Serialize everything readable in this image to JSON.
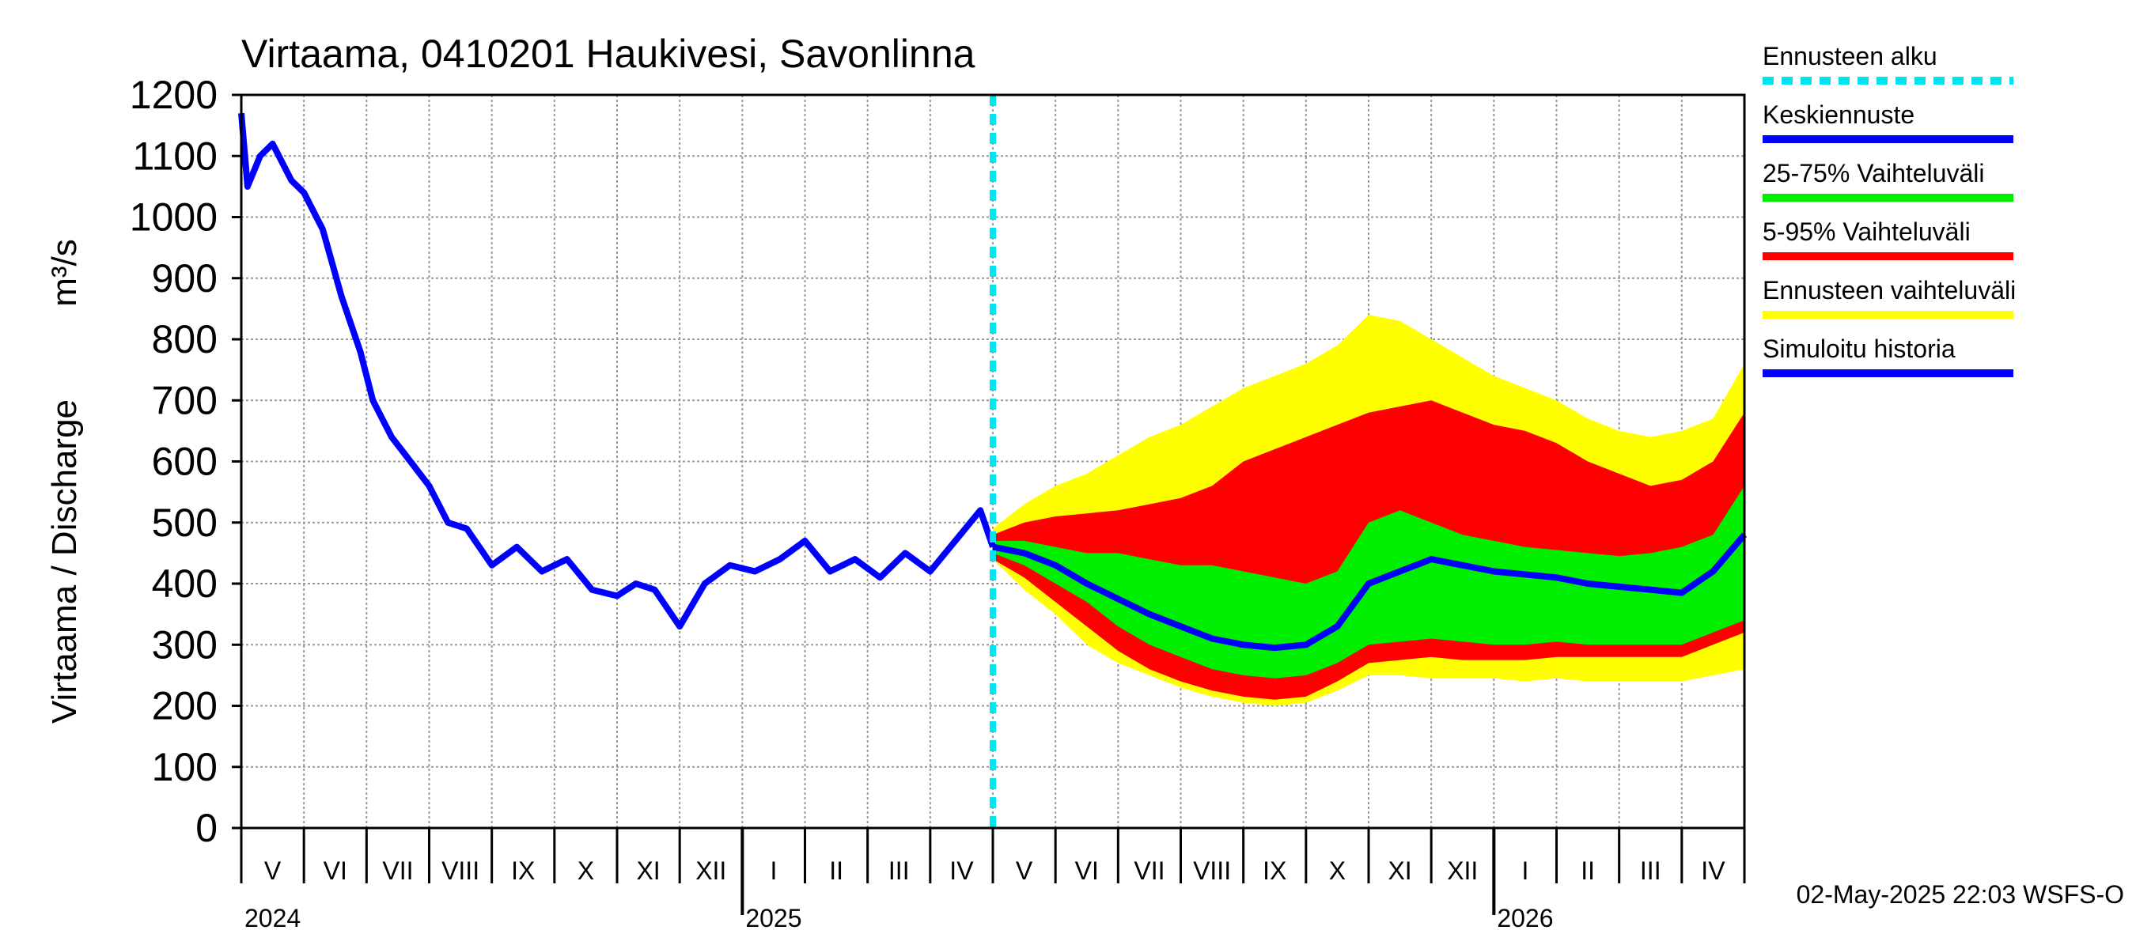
{
  "chart_data": {
    "type": "area",
    "title": "Virtaama, 0410201 Haukivesi, Savonlinna",
    "ylabel": "Virtaama / Discharge",
    "yunit": "m³/s",
    "ylim": [
      0,
      1200
    ],
    "yticks": [
      "0",
      "100",
      "200",
      "300",
      "400",
      "500",
      "600",
      "700",
      "800",
      "900",
      "1000",
      "1100",
      "1200"
    ],
    "months": [
      "V",
      "VI",
      "VII",
      "VIII",
      "IX",
      "X",
      "XI",
      "XII",
      "I",
      "II",
      "III",
      "IV",
      "V",
      "VI",
      "VII",
      "VIII",
      "IX",
      "X",
      "XI",
      "XII",
      "I",
      "II",
      "III",
      "IV"
    ],
    "years": [
      "2024",
      "2025",
      "2026"
    ],
    "forecast_start_month_index": 12,
    "legend": [
      {
        "label": "Ennusteen alku",
        "color": "#00e5ee",
        "style": "dashed"
      },
      {
        "label": "Keskiennuste",
        "color": "#0000ff",
        "style": "solid"
      },
      {
        "label": "25-75% Vaihteluväli",
        "color": "#00ee00",
        "style": "solid"
      },
      {
        "label": "5-95% Vaihteluväli",
        "color": "#ff0000",
        "style": "solid"
      },
      {
        "label": "Ennusteen vaihteluväli",
        "color": "#ffff00",
        "style": "solid"
      },
      {
        "label": "Simuloitu historia",
        "color": "#0000ff",
        "style": "solid"
      }
    ],
    "history": {
      "x_month": [
        0,
        0.1,
        0.3,
        0.5,
        0.8,
        1.0,
        1.3,
        1.6,
        1.9,
        2.1,
        2.4,
        2.7,
        3.0,
        3.3,
        3.6,
        4.0,
        4.4,
        4.8,
        5.2,
        5.6,
        6.0,
        6.3,
        6.6,
        7.0,
        7.4,
        7.8,
        8.2,
        8.6,
        9.0,
        9.4,
        9.8,
        10.2,
        10.6,
        11.0,
        11.4,
        11.8,
        12.0
      ],
      "y": [
        1170,
        1050,
        1100,
        1120,
        1060,
        1040,
        980,
        870,
        780,
        700,
        640,
        600,
        560,
        500,
        490,
        430,
        460,
        420,
        440,
        390,
        380,
        400,
        390,
        330,
        400,
        430,
        420,
        440,
        470,
        420,
        440,
        410,
        450,
        420,
        470,
        520,
        460
      ]
    },
    "forecast": {
      "x_month": [
        12,
        12.5,
        13,
        13.5,
        14,
        14.5,
        15,
        15.5,
        16,
        16.5,
        17,
        17.5,
        18,
        18.5,
        19,
        19.5,
        20,
        20.5,
        21,
        21.5,
        22,
        22.5,
        23,
        23.5,
        24
      ],
      "median": [
        460,
        450,
        430,
        400,
        375,
        350,
        330,
        310,
        300,
        295,
        300,
        330,
        400,
        420,
        440,
        430,
        420,
        415,
        410,
        400,
        395,
        390,
        385,
        420,
        480
      ],
      "p25": [
        450,
        430,
        400,
        370,
        330,
        300,
        280,
        260,
        250,
        245,
        250,
        270,
        300,
        305,
        310,
        305,
        300,
        300,
        305,
        300,
        300,
        300,
        300,
        320,
        340
      ],
      "p75": [
        470,
        470,
        460,
        450,
        450,
        440,
        430,
        430,
        420,
        410,
        400,
        420,
        500,
        520,
        500,
        480,
        470,
        460,
        455,
        450,
        445,
        450,
        460,
        480,
        560
      ],
      "p5": [
        440,
        410,
        370,
        330,
        290,
        260,
        240,
        225,
        215,
        210,
        215,
        240,
        270,
        275,
        280,
        275,
        275,
        275,
        280,
        280,
        280,
        280,
        280,
        300,
        320
      ],
      "p95": [
        480,
        500,
        510,
        515,
        520,
        530,
        540,
        560,
        600,
        620,
        640,
        660,
        680,
        690,
        700,
        680,
        660,
        650,
        630,
        600,
        580,
        560,
        570,
        600,
        680
      ],
      "min": [
        440,
        390,
        350,
        300,
        270,
        250,
        230,
        215,
        205,
        200,
        205,
        225,
        250,
        250,
        245,
        245,
        245,
        240,
        245,
        240,
        240,
        240,
        240,
        250,
        260
      ],
      "max": [
        490,
        530,
        560,
        580,
        610,
        640,
        660,
        690,
        720,
        740,
        760,
        790,
        840,
        830,
        800,
        770,
        740,
        720,
        700,
        670,
        650,
        640,
        650,
        670,
        760
      ]
    }
  },
  "footer": {
    "timestamp": "02-May-2025 22:03 WSFS-O"
  }
}
